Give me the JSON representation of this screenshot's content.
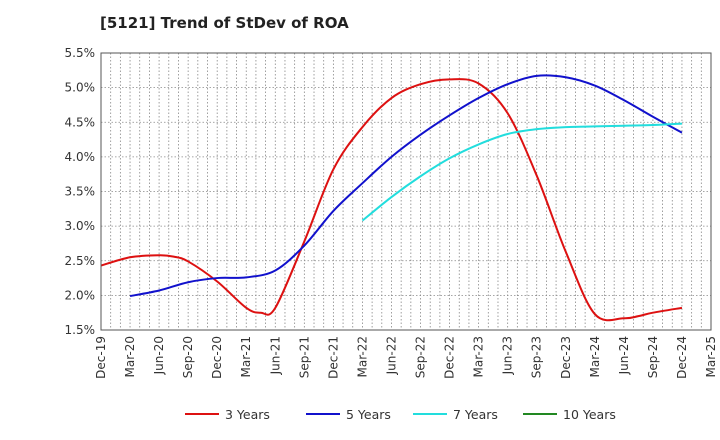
{
  "chart_data": {
    "type": "line",
    "title": "[5121]  Trend of StDev of ROA",
    "xlabel": "",
    "ylabel": "",
    "x_tick_labels": [
      "Dec-19",
      "Mar-20",
      "Jun-20",
      "Sep-20",
      "Dec-20",
      "Mar-21",
      "Jun-21",
      "Sep-21",
      "Dec-21",
      "Mar-22",
      "Jun-22",
      "Sep-22",
      "Dec-22",
      "Mar-23",
      "Jun-23",
      "Sep-23",
      "Dec-23",
      "Mar-24",
      "Jun-24",
      "Sep-24",
      "Dec-24",
      "Mar-25"
    ],
    "y_tick_labels": [
      "1.5%",
      "2.0%",
      "2.5%",
      "3.0%",
      "3.5%",
      "4.0%",
      "4.5%",
      "5.0%",
      "5.5%"
    ],
    "ylim": [
      1.5,
      5.5
    ],
    "grid": true,
    "legend_position": "bottom",
    "series": [
      {
        "name": "3 Years",
        "color": "#dd1111",
        "x": [
          0,
          1,
          2,
          2.5,
          3,
          4,
          5,
          5.5,
          6,
          7,
          8,
          9,
          10,
          11,
          12,
          13,
          14,
          15,
          16,
          17,
          18,
          18.5,
          19,
          20
        ],
        "values": [
          2.43,
          2.55,
          2.58,
          2.56,
          2.49,
          2.2,
          1.82,
          1.75,
          1.82,
          2.78,
          3.82,
          4.43,
          4.85,
          5.05,
          5.12,
          5.06,
          4.63,
          3.73,
          2.63,
          1.73,
          1.67,
          1.7,
          1.75,
          1.82
        ]
      },
      {
        "name": "5 Years",
        "color": "#1111cc",
        "x": [
          1,
          2,
          3,
          4,
          5,
          6,
          7,
          8,
          9,
          10,
          11,
          12,
          13,
          14,
          15,
          16,
          17,
          18,
          19,
          20
        ],
        "values": [
          1.99,
          2.07,
          2.19,
          2.25,
          2.26,
          2.36,
          2.72,
          3.22,
          3.62,
          4.0,
          4.32,
          4.6,
          4.85,
          5.05,
          5.17,
          5.15,
          5.03,
          4.82,
          4.58,
          4.35
        ]
      },
      {
        "name": "7 Years",
        "color": "#22dddd",
        "x": [
          9,
          10,
          11,
          12,
          13,
          14,
          15,
          16,
          17,
          18,
          19,
          20
        ],
        "values": [
          3.08,
          3.42,
          3.72,
          3.98,
          4.18,
          4.33,
          4.4,
          4.43,
          4.44,
          4.45,
          4.46,
          4.48
        ]
      },
      {
        "name": "10 Years",
        "color": "#228822",
        "x": [],
        "values": []
      }
    ]
  }
}
